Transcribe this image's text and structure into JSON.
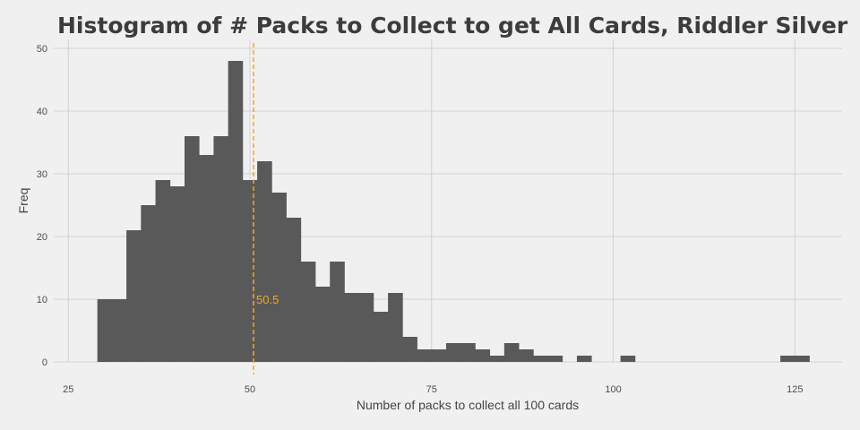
{
  "chart_data": {
    "type": "bar",
    "title": "Histogram of # Packs to Collect to get All Cards, Riddler Silver",
    "xlabel": "Number of packs to collect all 100 cards",
    "ylabel": "Freq",
    "xlim": [
      23,
      131.5
    ],
    "ylim": [
      0,
      50
    ],
    "binwidth": 2,
    "x_ticks": [
      25,
      50,
      75,
      100,
      125
    ],
    "y_ticks": [
      0,
      10,
      20,
      30,
      40,
      50
    ],
    "grid": true,
    "bins": [
      {
        "start": 29,
        "count": 10
      },
      {
        "start": 31,
        "count": 10
      },
      {
        "start": 33,
        "count": 21
      },
      {
        "start": 35,
        "count": 25
      },
      {
        "start": 37,
        "count": 29
      },
      {
        "start": 39,
        "count": 28
      },
      {
        "start": 41,
        "count": 36
      },
      {
        "start": 43,
        "count": 33
      },
      {
        "start": 45,
        "count": 36
      },
      {
        "start": 47,
        "count": 48
      },
      {
        "start": 49,
        "count": 29
      },
      {
        "start": 51,
        "count": 32
      },
      {
        "start": 53,
        "count": 27
      },
      {
        "start": 55,
        "count": 23
      },
      {
        "start": 57,
        "count": 16
      },
      {
        "start": 59,
        "count": 12
      },
      {
        "start": 61,
        "count": 16
      },
      {
        "start": 63,
        "count": 11
      },
      {
        "start": 65,
        "count": 11
      },
      {
        "start": 67,
        "count": 8
      },
      {
        "start": 69,
        "count": 11
      },
      {
        "start": 71,
        "count": 4
      },
      {
        "start": 73,
        "count": 2
      },
      {
        "start": 75,
        "count": 2
      },
      {
        "start": 77,
        "count": 3
      },
      {
        "start": 79,
        "count": 3
      },
      {
        "start": 81,
        "count": 2
      },
      {
        "start": 83,
        "count": 1
      },
      {
        "start": 85,
        "count": 3
      },
      {
        "start": 87,
        "count": 2
      },
      {
        "start": 89,
        "count": 1
      },
      {
        "start": 91,
        "count": 1
      },
      {
        "start": 95,
        "count": 1
      },
      {
        "start": 101,
        "count": 1
      },
      {
        "start": 123,
        "count": 1
      },
      {
        "start": 125,
        "count": 1
      }
    ],
    "mean_line": {
      "value": 50.5,
      "label": "50.5",
      "color": "#f5a623"
    },
    "colors": {
      "bar": "#595959",
      "background": "#f0f0f0",
      "grid": "#d2d2d2"
    }
  }
}
